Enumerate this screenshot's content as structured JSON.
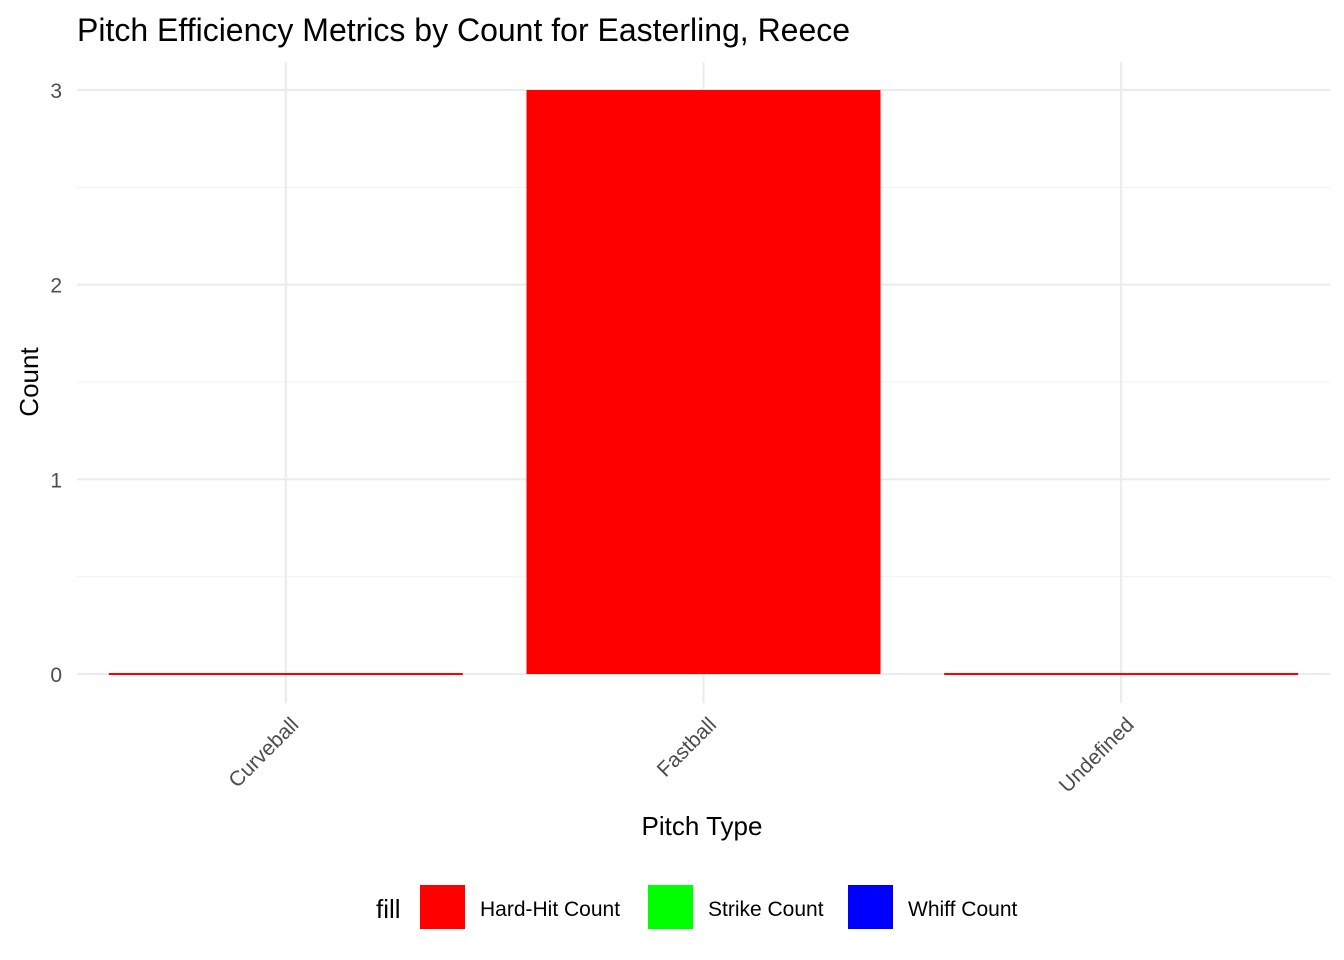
{
  "chart_data": {
    "type": "bar",
    "title": "Pitch Efficiency Metrics by Count for Easterling, Reece",
    "xlabel": "Pitch Type",
    "ylabel": "Count",
    "categories": [
      "Curveball",
      "Fastball",
      "Undefined"
    ],
    "series": [
      {
        "name": "Hard-Hit Count",
        "color": "#ff0000",
        "values": [
          0,
          3,
          0
        ]
      },
      {
        "name": "Strike Count",
        "color": "#00ff00",
        "values": [
          0,
          0,
          0
        ]
      },
      {
        "name": "Whiff Count",
        "color": "#0000ff",
        "values": [
          0,
          0,
          0
        ]
      }
    ],
    "ylim": [
      0,
      3
    ],
    "yticks": [
      0,
      1,
      2,
      3
    ],
    "grid": true,
    "legend": {
      "title": "fill",
      "position": "bottom"
    }
  }
}
